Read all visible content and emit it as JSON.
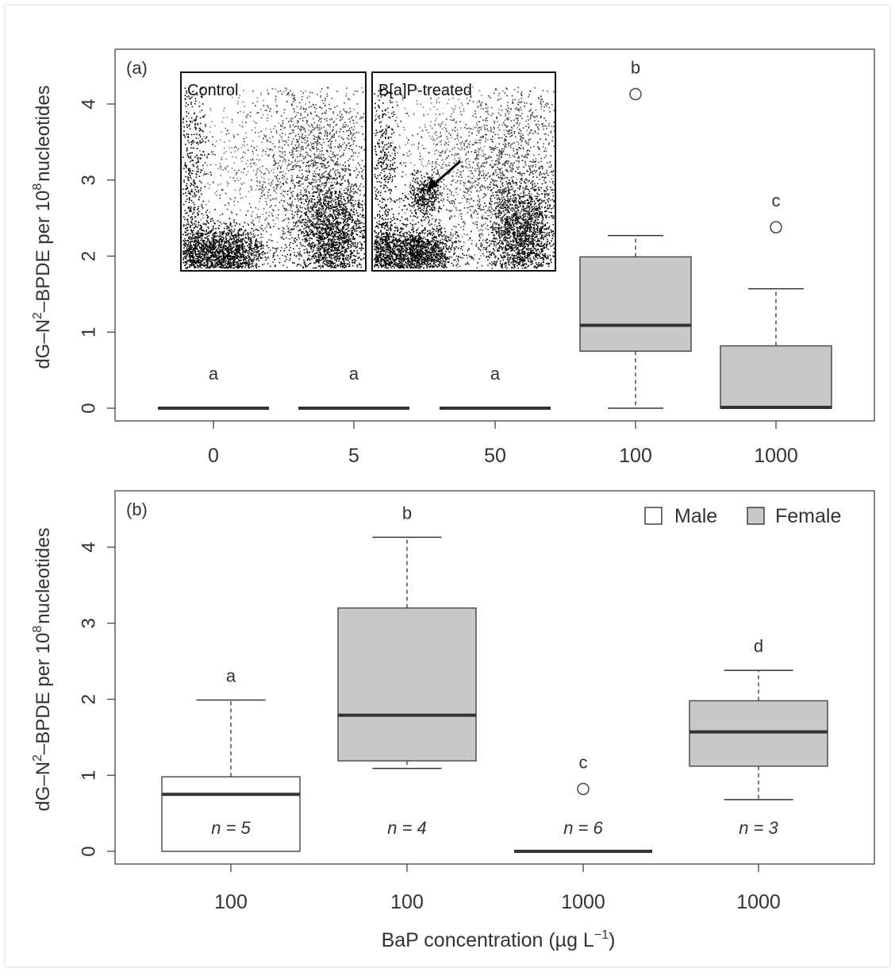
{
  "chart_data": [
    {
      "panel_label": "(a)",
      "type": "box",
      "ylabel_prefix": "dG–N",
      "ylabel_sup1": "2",
      "ylabel_mid": "–BPDE per 10",
      "ylabel_sup2": "8",
      "ylabel_suffix": "nucleotides",
      "ylim": [
        -0.15,
        4.5
      ],
      "yticks": [
        "0",
        "1",
        "2",
        "3",
        "4"
      ],
      "categories": [
        "0",
        "5",
        "50",
        "100",
        "1000"
      ],
      "boxes": [
        {
          "x": "0",
          "fill": "#c8c8c8",
          "whisker_low": 0,
          "q1": 0,
          "median": 0,
          "q3": 0,
          "whisker_high": 0,
          "outliers": [],
          "letter": "a"
        },
        {
          "x": "5",
          "fill": "#c8c8c8",
          "whisker_low": 0,
          "q1": 0,
          "median": 0,
          "q3": 0,
          "whisker_high": 0,
          "outliers": [],
          "letter": "a"
        },
        {
          "x": "50",
          "fill": "#c8c8c8",
          "whisker_low": 0,
          "q1": 0,
          "median": 0,
          "q3": 0,
          "whisker_high": 0,
          "outliers": [],
          "letter": "a"
        },
        {
          "x": "100",
          "fill": "#c8c8c8",
          "whisker_low": 0,
          "q1": 0.75,
          "median": 1.09,
          "q3": 1.99,
          "whisker_high": 2.27,
          "outliers": [
            4.13
          ],
          "letter": "b"
        },
        {
          "x": "1000",
          "fill": "#c8c8c8",
          "whisker_low": 0,
          "q1": 0,
          "median": 0.01,
          "q3": 0.82,
          "whisker_high": 1.57,
          "outliers": [
            2.38
          ],
          "letter": "c"
        }
      ],
      "insets": [
        {
          "label": "Control"
        },
        {
          "label": "B[a]P-treated"
        }
      ]
    },
    {
      "panel_label": "(b)",
      "type": "box",
      "ylabel_prefix": "dG–N",
      "ylabel_sup1": "2",
      "ylabel_mid": "–BPDE per 10",
      "ylabel_sup2": "8",
      "ylabel_suffix": "nucleotides",
      "ylim": [
        -0.15,
        4.5
      ],
      "yticks": [
        "0",
        "1",
        "2",
        "3",
        "4"
      ],
      "categories": [
        "100",
        "100",
        "1000",
        "1000"
      ],
      "xlabel": "BaP concentration (µg L",
      "xlabel_sup": "−1",
      "xlabel_end": ")",
      "legend": {
        "position": "top-right",
        "items": [
          {
            "label": "Male",
            "color": "#ffffff"
          },
          {
            "label": "Female",
            "color": "#c8c8c8"
          }
        ]
      },
      "boxes": [
        {
          "x": "100",
          "fill": "#ffffff",
          "whisker_low": 0,
          "q1": 0,
          "median": 0.75,
          "q3": 0.98,
          "whisker_high": 1.99,
          "outliers": [],
          "letter": "a",
          "n_label": "n = 5"
        },
        {
          "x": "100",
          "fill": "#c8c8c8",
          "whisker_low": 1.09,
          "q1": 1.19,
          "median": 1.79,
          "q3": 3.2,
          "whisker_high": 4.13,
          "outliers": [],
          "letter": "b",
          "n_label": "n = 4"
        },
        {
          "x": "1000",
          "fill": "#c8c8c8",
          "whisker_low": 0,
          "q1": 0,
          "median": 0,
          "q3": 0,
          "whisker_high": 0,
          "outliers": [
            0.82
          ],
          "letter": "c",
          "n_label": "n = 6"
        },
        {
          "x": "1000",
          "fill": "#c8c8c8",
          "whisker_low": 0.68,
          "q1": 1.12,
          "median": 1.57,
          "q3": 1.98,
          "whisker_high": 2.38,
          "outliers": [],
          "letter": "d",
          "n_label": "n = 3"
        }
      ]
    }
  ]
}
